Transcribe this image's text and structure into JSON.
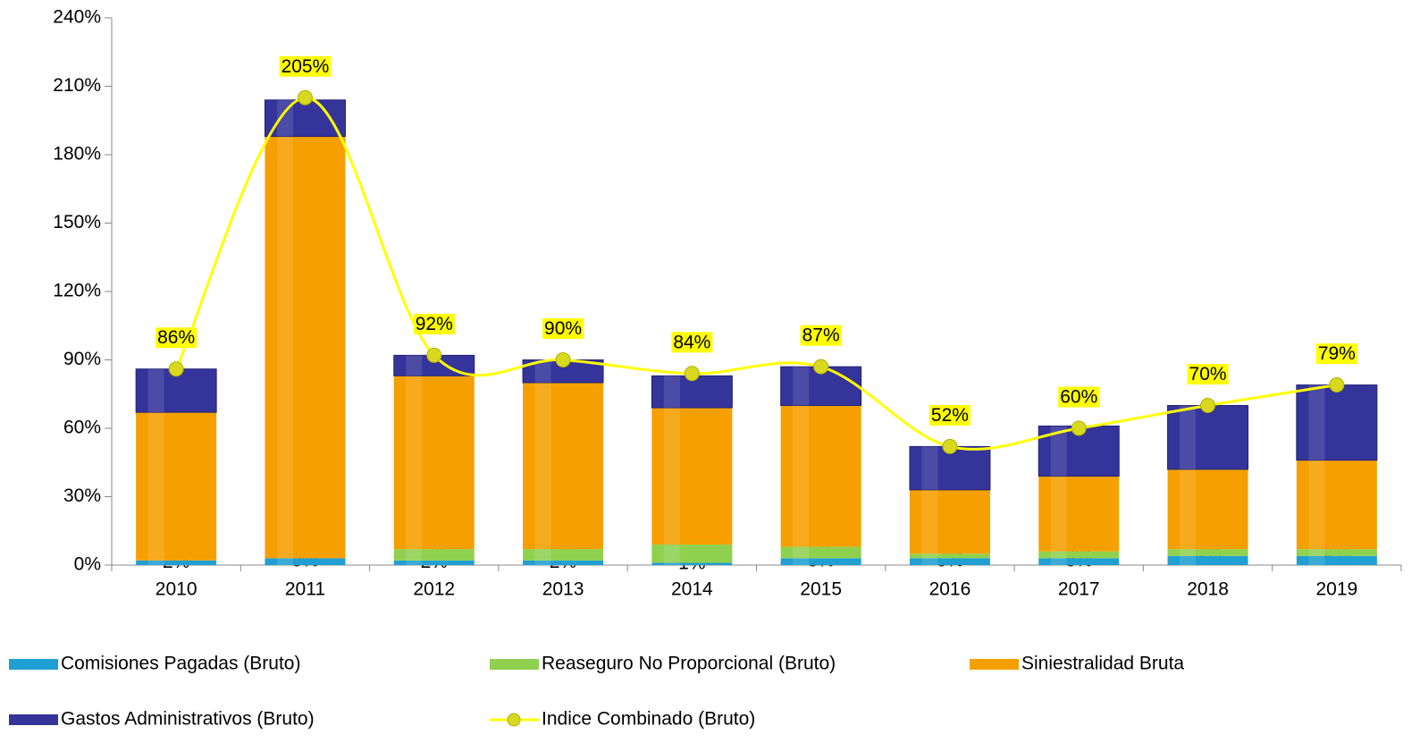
{
  "chart_data": {
    "type": "bar",
    "categories": [
      "2010",
      "2011",
      "2012",
      "2013",
      "2014",
      "2015",
      "2016",
      "2017",
      "2018",
      "2019"
    ],
    "series": [
      {
        "name": "Comisiones Pagadas (Bruto)",
        "color": "#1f9fd2",
        "values": [
          2,
          3,
          2,
          2,
          1,
          3,
          3,
          3,
          4,
          4
        ],
        "value_labels": [
          "2%",
          "3%",
          "2%",
          "2%",
          "1%",
          "3%",
          "3%",
          "3%",
          "4%",
          "4%"
        ]
      },
      {
        "name": "Reaseguro No Proporcional (Bruto)",
        "color": "#8fd14f",
        "values": [
          null,
          null,
          5,
          5,
          8,
          5,
          2,
          3,
          3,
          3
        ],
        "value_labels": [
          null,
          null,
          "5%",
          "5%",
          "8%",
          "5%",
          "2%",
          "3%",
          "3%",
          "3%"
        ]
      },
      {
        "name": "Siniestralidad Bruta",
        "color": "#f5a000",
        "values": [
          65,
          185,
          76,
          73,
          60,
          62,
          28,
          33,
          35,
          39
        ],
        "value_labels": [
          "65%",
          "185%",
          "76%",
          "73%",
          "60%",
          "62%",
          "28%",
          "33%",
          "35%",
          "39%"
        ]
      },
      {
        "name": "Gastos Administrativos (Bruto)",
        "color": "#34349a",
        "values": [
          19,
          16,
          9,
          10,
          14,
          17,
          19,
          22,
          28,
          33
        ],
        "value_labels": [
          "19%",
          "16%",
          "9%",
          "10%",
          "14%",
          "17%",
          "19%",
          "22%",
          "28%",
          "33%"
        ]
      },
      {
        "name": "Indice Combinado (Bruto)",
        "color": "#ffff00",
        "type": "line",
        "values": [
          86,
          205,
          92,
          90,
          84,
          87,
          52,
          60,
          70,
          79
        ],
        "value_labels": [
          "86%",
          "205%",
          "92%",
          "90%",
          "84%",
          "87%",
          "52%",
          "60%",
          "70%",
          "79%"
        ]
      }
    ],
    "ylim": [
      0,
      240
    ],
    "yticks": [
      {
        "value": 0,
        "label": "0%"
      },
      {
        "value": 30,
        "label": "30%"
      },
      {
        "value": 60,
        "label": "60%"
      },
      {
        "value": 90,
        "label": "90%"
      },
      {
        "value": 120,
        "label": "120%"
      },
      {
        "value": 150,
        "label": "150%"
      },
      {
        "value": 180,
        "label": "180%"
      },
      {
        "value": 210,
        "label": "210%"
      },
      {
        "value": 240,
        "label": "240%"
      }
    ],
    "legend": "bottom"
  }
}
